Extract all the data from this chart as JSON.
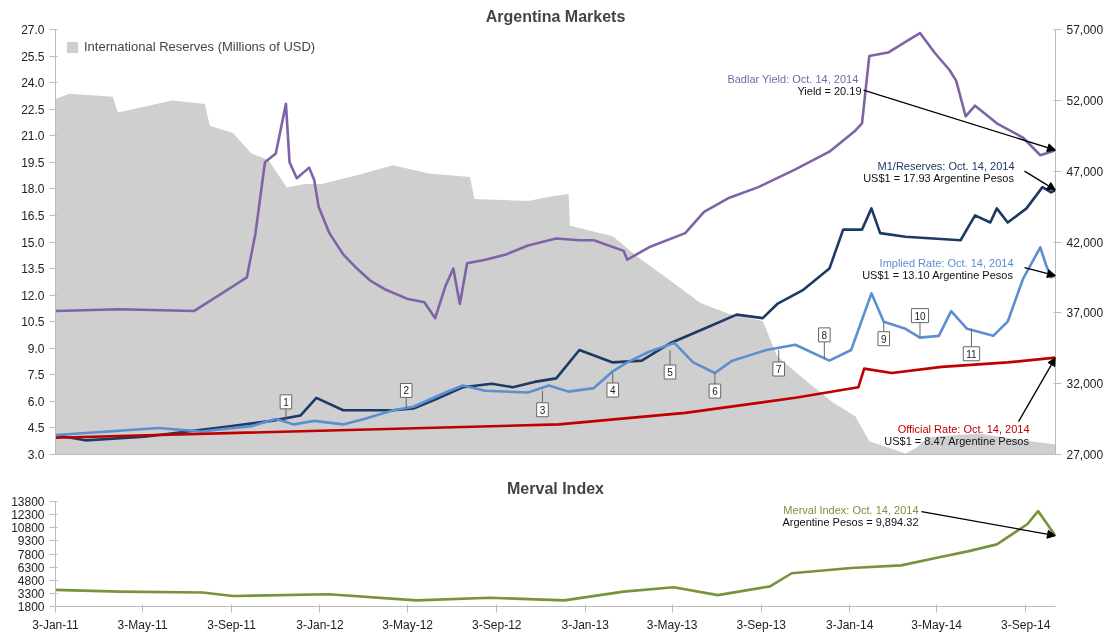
{
  "chart_data": [
    {
      "type": "line",
      "title": "Argentina Markets",
      "xlim": [
        "2011-01-03",
        "2014-10-14"
      ],
      "ylim": [
        3,
        27
      ],
      "yticks": [
        {
          "value": 3,
          "label": "3.0"
        },
        4.5,
        {
          "value": 6,
          "label": "6.0"
        },
        7.5,
        {
          "value": 9,
          "label": "9.0"
        },
        10.5,
        {
          "value": 12,
          "label": "12.0"
        },
        13.5,
        {
          "value": 15,
          "label": "15.0"
        },
        16.5,
        {
          "value": 18,
          "label": "18.0"
        },
        19.5,
        {
          "value": 21,
          "label": "21.0"
        },
        22.5,
        {
          "value": 24,
          "label": "24.0"
        },
        25.5,
        {
          "value": 27,
          "label": "27.0"
        }
      ],
      "y2lim": [
        27000,
        57000
      ],
      "y2ticks": [
        {
          "value": 27000,
          "label": "27,000"
        },
        {
          "value": 32000,
          "label": "32,000"
        },
        {
          "value": 37000,
          "label": "37,000"
        },
        {
          "value": 42000,
          "label": "42,000"
        },
        {
          "value": 47000,
          "label": "47,000"
        },
        {
          "value": 52000,
          "label": "52,000"
        },
        {
          "value": 57000,
          "label": "57,000"
        }
      ],
      "tick_labels": "y",
      "grid": false,
      "legend": "top left",
      "series": [
        {
          "name": "International Reserves (Millions of USD)",
          "type": "area",
          "axis": "y2",
          "color": "#cfcfcf",
          "x": [
            "2011-01-03",
            "2011-01-22",
            "2011-03-23",
            "2011-03-30",
            "2011-06-13",
            "2011-07-28",
            "2011-08-04",
            "2011-09-05",
            "2011-09-30",
            "2011-10-24",
            "2011-11-18",
            "2011-12-13",
            "2012-01-05",
            "2012-02-23",
            "2012-04-13",
            "2012-06-01",
            "2012-07-28",
            "2012-08-03",
            "2012-10-16",
            "2012-11-19",
            "2012-12-11",
            "2012-12-13",
            "2013-02-10",
            "2013-03-17",
            "2013-04-27",
            "2013-06-11",
            "2013-07-21",
            "2013-09-05",
            "2013-09-25",
            "2013-11-04",
            "2013-12-10",
            "2014-01-11",
            "2014-01-30",
            "2014-03-21",
            "2014-04-05",
            "2014-04-21",
            "2014-06-30",
            "2014-08-19",
            "2014-10-14"
          ],
          "values": [
            52090,
            52460,
            52250,
            51150,
            51980,
            51750,
            50200,
            49700,
            48260,
            47790,
            45840,
            46100,
            46100,
            46710,
            47420,
            46840,
            46580,
            45030,
            44900,
            45230,
            45390,
            43140,
            42400,
            40920,
            39410,
            37700,
            36920,
            36420,
            33930,
            32180,
            30700,
            29690,
            27940,
            27070,
            27470,
            28210,
            28480,
            28080,
            27710
          ]
        },
        {
          "color": "#7f62a8",
          "x": [
            "2011-01-03",
            "2011-04-01",
            "2011-07-13",
            "2011-09-05",
            "2011-09-24",
            "2011-10-06",
            "2011-10-19",
            "2011-11-03",
            "2011-11-17",
            "2011-11-22",
            "2011-12-02",
            "2011-12-19",
            "2011-12-26",
            "2012-01-01",
            "2012-01-16",
            "2012-02-04",
            "2012-02-23",
            "2012-03-13",
            "2012-04-03",
            "2012-05-02",
            "2012-05-26",
            "2012-06-10",
            "2012-06-24",
            "2012-07-05",
            "2012-07-14",
            "2012-07-24",
            "2012-08-18",
            "2012-09-16",
            "2012-10-16",
            "2012-11-24",
            "2012-12-26",
            "2013-01-15",
            "2013-02-25",
            "2013-03-02",
            "2013-04-01",
            "2013-05-21",
            "2013-06-16",
            "2013-07-21",
            "2013-08-30",
            "2013-10-20",
            "2013-12-06",
            "2014-01-11",
            "2014-01-20",
            "2014-01-30",
            "2014-02-25",
            "2014-03-21",
            "2014-04-10",
            "2014-04-30",
            "2014-05-21",
            "2014-05-30",
            "2014-06-12",
            "2014-06-25",
            "2014-07-25",
            "2014-08-30",
            "2014-09-23",
            "2014-10-08",
            "2014-10-14"
          ],
          "values": [
            11.1,
            11.2,
            11.1,
            12.5,
            13.0,
            15.5,
            19.5,
            20.0,
            22.8,
            19.5,
            18.6,
            19.2,
            18.5,
            17.0,
            15.5,
            14.3,
            13.5,
            12.8,
            12.3,
            11.8,
            11.6,
            10.7,
            12.5,
            13.5,
            11.5,
            13.8,
            14.0,
            14.3,
            14.8,
            15.2,
            15.1,
            15.1,
            14.5,
            14.0,
            14.7,
            15.5,
            16.7,
            17.5,
            18.1,
            19.1,
            20.1,
            21.3,
            21.7,
            25.5,
            25.7,
            26.3,
            26.8,
            25.7,
            24.7,
            24.1,
            22.1,
            22.7,
            21.7,
            20.9,
            19.9,
            20.1,
            20.19
          ]
        },
        {
          "color": "#1c3a63",
          "x": [
            "2011-01-03",
            "2011-02-13",
            "2011-05-06",
            "2011-07-04",
            "2011-09-01",
            "2011-10-28",
            "2011-12-07",
            "2011-12-29",
            "2012-02-04",
            "2012-04-13",
            "2012-05-11",
            "2012-06-10",
            "2012-07-18",
            "2012-08-27",
            "2012-09-25",
            "2012-10-25",
            "2012-11-24",
            "2012-12-26",
            "2013-02-10",
            "2013-03-22",
            "2013-05-01",
            "2013-06-16",
            "2013-07-31",
            "2013-09-05",
            "2013-09-25",
            "2013-10-31",
            "2013-12-06",
            "2013-12-25",
            "2014-01-20",
            "2014-02-02",
            "2014-02-14",
            "2014-03-21",
            "2014-06-05",
            "2014-06-25",
            "2014-07-16",
            "2014-07-25",
            "2014-08-09",
            "2014-09-04",
            "2014-09-26",
            "2014-10-08",
            "2014-10-14"
          ],
          "values": [
            4.1,
            3.8,
            4.0,
            4.3,
            4.6,
            4.9,
            5.2,
            6.2,
            5.5,
            5.5,
            5.6,
            6.1,
            6.8,
            7.0,
            6.8,
            7.1,
            7.3,
            8.9,
            8.2,
            8.3,
            9.3,
            10.1,
            10.9,
            10.7,
            11.5,
            12.3,
            13.5,
            15.7,
            15.7,
            16.9,
            15.5,
            15.3,
            15.1,
            16.5,
            16.1,
            16.9,
            16.1,
            16.9,
            18.1,
            17.8,
            17.93
          ]
        },
        {
          "color": "#5b8fd0",
          "x": [
            "2011-01-03",
            "2011-03-17",
            "2011-05-25",
            "2011-07-23",
            "2011-09-30",
            "2011-11-03",
            "2011-11-28",
            "2011-12-26",
            "2012-02-04",
            "2012-03-04",
            "2012-04-13",
            "2012-05-11",
            "2012-06-24",
            "2012-07-18",
            "2012-08-18",
            "2012-10-16",
            "2012-11-14",
            "2012-12-11",
            "2013-01-15",
            "2013-02-10",
            "2013-03-02",
            "2013-04-01",
            "2013-05-06",
            "2013-06-01",
            "2013-07-01",
            "2013-07-25",
            "2013-09-10",
            "2013-10-20",
            "2013-12-06",
            "2014-01-05",
            "2014-02-02",
            "2014-02-19",
            "2014-03-21",
            "2014-04-10",
            "2014-05-06",
            "2014-05-23",
            "2014-06-14",
            "2014-07-20",
            "2014-08-09",
            "2014-08-30",
            "2014-09-23",
            "2014-10-01",
            "2014-10-08",
            "2014-10-14"
          ],
          "values": [
            4.1,
            4.3,
            4.5,
            4.3,
            4.6,
            5.0,
            4.7,
            4.9,
            4.7,
            5.0,
            5.5,
            5.7,
            6.5,
            6.9,
            6.6,
            6.5,
            6.9,
            6.55,
            6.75,
            7.7,
            8.2,
            8.8,
            9.3,
            8.2,
            7.6,
            8.3,
            8.9,
            9.2,
            8.3,
            8.9,
            12.1,
            10.5,
            10.1,
            9.6,
            9.7,
            11.1,
            10.1,
            9.7,
            10.5,
            12.9,
            14.7,
            13.7,
            13.0,
            13.1
          ]
        },
        {
          "color": "#c00000",
          "x": [
            "2011-01-03",
            "2012-11-28",
            "2013-05-21",
            "2013-10-20",
            "2014-01-15",
            "2014-01-23",
            "2014-03-02",
            "2014-05-10",
            "2014-08-09",
            "2014-10-14"
          ],
          "values": [
            3.95,
            4.7,
            5.35,
            6.2,
            6.8,
            7.85,
            7.6,
            7.95,
            8.2,
            8.47
          ]
        }
      ],
      "annotations": [
        {
          "text": "Badlar Yield: Oct. 14,  2014\nYield = 20.19",
          "x": "2014-10-14",
          "y": 20.19
        },
        {
          "text": "M1/Reserves: Oct. 14, 2014\nUS$1 = 17.93 Argentine Pesos",
          "x": "2014-10-14",
          "y": 17.93
        },
        {
          "text": "Implied Rate: Oct. 14, 2014\nUS$1 = 13.10 Argentine Pesos",
          "x": "2014-10-14",
          "y": 13.1
        },
        {
          "text": "Official Rate: Oct. 14, 2014\nUS$1 = 8.47 Argentine Pesos",
          "x": "2014-10-14",
          "y": 8.47
        },
        {
          "text": "1",
          "x": "2011-11-17",
          "y": 4.9
        },
        {
          "text": "2",
          "x": "2012-05-01",
          "y": 5.6
        },
        {
          "text": "3",
          "x": "2012-11-05",
          "y": 6.6
        },
        {
          "text": "4",
          "x": "2013-02-10",
          "y": 7.6
        },
        {
          "text": "5",
          "x": "2013-04-30",
          "y": 8.9
        },
        {
          "text": "6",
          "x": "2013-07-01",
          "y": 7.6
        },
        {
          "text": "7",
          "x": "2013-09-27",
          "y": 8.9
        },
        {
          "text": "8",
          "x": "2013-11-29",
          "y": 8.4
        },
        {
          "text": "9",
          "x": "2014-02-19",
          "y": 10.5
        },
        {
          "text": "10",
          "x": "2014-04-10",
          "y": 9.6
        },
        {
          "text": "11",
          "x": "2014-06-20",
          "y": 10.1
        }
      ]
    },
    {
      "type": "line",
      "title": "Merval Index",
      "xlim": [
        "2011-01-03",
        "2014-10-14"
      ],
      "xticks": [
        {
          "value": "2011-01-03",
          "label": "3-Jan-11"
        },
        {
          "value": "2011-05-03",
          "label": "3-May-11"
        },
        {
          "value": "2011-09-03",
          "label": "3-Sep-11"
        },
        {
          "value": "2012-01-03",
          "label": "3-Jan-12"
        },
        {
          "value": "2012-05-03",
          "label": "3-May-12"
        },
        {
          "value": "2012-09-03",
          "label": "3-Sep-12"
        },
        {
          "value": "2013-01-03",
          "label": "3-Jan-13"
        },
        {
          "value": "2013-05-03",
          "label": "3-May-13"
        },
        {
          "value": "2013-09-03",
          "label": "3-Sep-13"
        },
        {
          "value": "2014-01-03",
          "label": "3-Jan-14"
        },
        {
          "value": "2014-05-03",
          "label": "3-May-14"
        },
        {
          "value": "2014-09-03",
          "label": "3-Sep-14"
        }
      ],
      "ylim": [
        1800,
        13800
      ],
      "yticks": [
        1800,
        3300,
        4800,
        6300,
        7800,
        9300,
        10800,
        12300,
        13800
      ],
      "grid": false,
      "series": [
        {
          "color": "#77933c",
          "x": [
            "2011-01-03",
            "2011-04-01",
            "2011-07-25",
            "2011-09-05",
            "2012-01-15",
            "2012-05-15",
            "2012-08-25",
            "2012-12-05",
            "2013-02-25",
            "2013-05-05",
            "2013-07-05",
            "2013-09-15",
            "2013-10-15",
            "2014-01-05",
            "2014-03-15",
            "2014-05-05",
            "2014-06-15",
            "2014-07-25",
            "2014-09-05",
            "2014-09-20",
            "2014-10-14"
          ],
          "values": [
            3700,
            3500,
            3400,
            3000,
            3200,
            2500,
            2800,
            2500,
            3500,
            4000,
            3100,
            4100,
            5600,
            6200,
            6500,
            7400,
            8100,
            8900,
            11200,
            12700,
            9894.32
          ]
        }
      ],
      "annotations": [
        {
          "text": "Merval Index: Oct. 14, 2014\nArgentine Pesos = 9,894.32",
          "x": "2014-10-14",
          "y": 9894.32
        }
      ]
    }
  ]
}
